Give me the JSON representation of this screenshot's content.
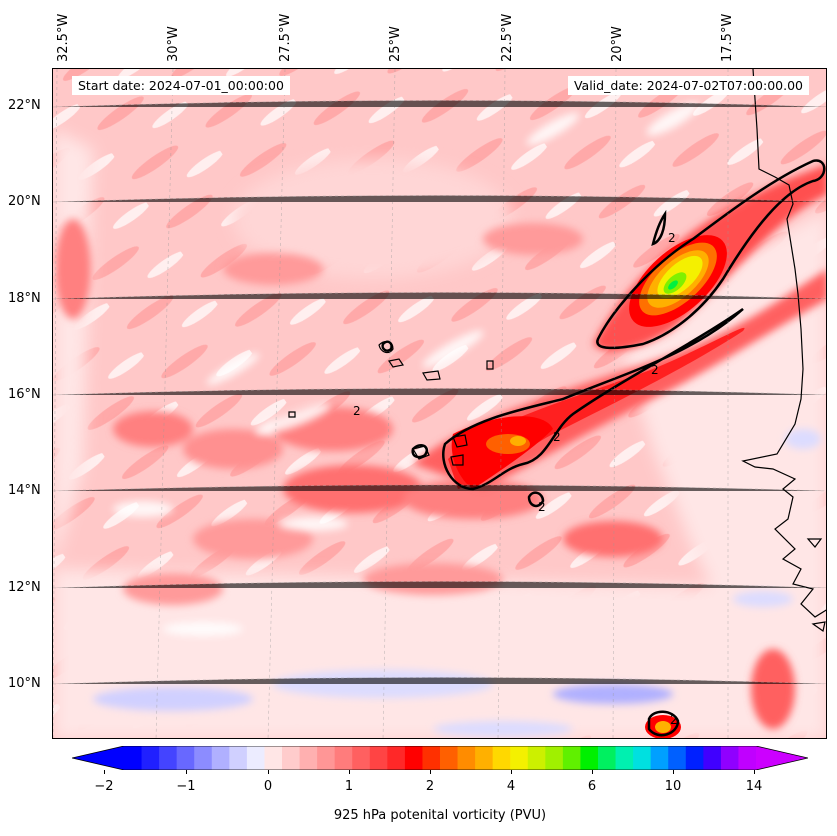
{
  "map": {
    "start_date": "Start date: 2024-07-01_00:00:00",
    "valid_date": "Valid_date: 2024-07-02T07:00:00.00",
    "lon_labels": [
      "32.5°W",
      "30°W",
      "27.5°W",
      "25°W",
      "22.5°W",
      "20°W",
      "17.5°W"
    ],
    "lat_labels": [
      "22°N",
      "20°N",
      "18°N",
      "16°N",
      "14°N",
      "12°N",
      "10°N"
    ],
    "contour_label": "2",
    "lon_range": [
      -32.7,
      -15.4
    ],
    "lat_range": [
      8.9,
      22.8
    ]
  },
  "colorbar": {
    "label": "925 hPa potenital vorticity (PVU)",
    "tick_labels": [
      "−2",
      "−1",
      "0",
      "1",
      "2",
      "4",
      "6",
      "10",
      "14"
    ],
    "colors": [
      "#0000ff",
      "#2020ff",
      "#4444ff",
      "#6868ff",
      "#8c8cff",
      "#b0b0ff",
      "#d0d0ff",
      "#ececff",
      "#ffe6e6",
      "#ffcccc",
      "#ffb0b0",
      "#ff9696",
      "#ff7c7c",
      "#ff6060",
      "#ff4444",
      "#ff2828",
      "#ff0000",
      "#ff3000",
      "#ff6000",
      "#ff8c00",
      "#ffb000",
      "#ffd800",
      "#f4f000",
      "#ccf000",
      "#a0f000",
      "#60f000",
      "#00f000",
      "#00f060",
      "#00f0b0",
      "#00e0e0",
      "#00a0ff",
      "#0060ff",
      "#0020ff",
      "#4000ff",
      "#9000ff",
      "#c000ff"
    ],
    "under_color": "#0000ff",
    "over_color": "#cc00ff"
  }
}
